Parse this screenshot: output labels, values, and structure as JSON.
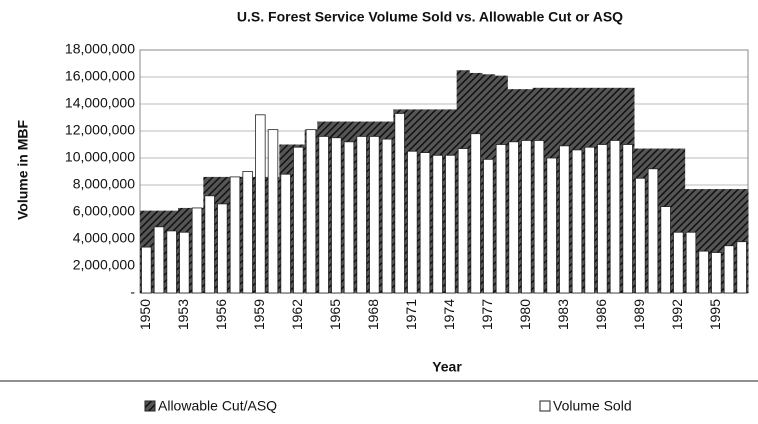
{
  "chart_data": {
    "type": "bar",
    "title": "U.S. Forest Service Volume Sold vs. Allowable Cut or ASQ",
    "x_label": "Year",
    "y_label": "Volume in MBF",
    "categories": [
      "1950",
      null,
      null,
      "1953",
      null,
      null,
      "1956",
      null,
      null,
      "1959",
      null,
      null,
      "1962",
      null,
      null,
      "1965",
      null,
      null,
      "1968",
      null,
      null,
      "1971",
      null,
      null,
      "1974",
      null,
      null,
      "1977",
      null,
      null,
      "1980",
      null,
      null,
      "1983",
      null,
      null,
      "1986",
      null,
      null,
      "1989",
      null,
      null,
      "1992",
      null,
      null,
      "1995",
      null,
      null
    ],
    "series": [
      {
        "name": "Allowable Cut/ASQ",
        "type": "area",
        "color": "#222222",
        "values": [
          6100000,
          6100000,
          6100000,
          6300000,
          6300000,
          8600000,
          8600000,
          8600000,
          8600000,
          8600000,
          8600000,
          11000000,
          11000000,
          12100000,
          12700000,
          12700000,
          12700000,
          12700000,
          12700000,
          12700000,
          13600000,
          13600000,
          13600000,
          13600000,
          13600000,
          16500000,
          16300000,
          16200000,
          16100000,
          15100000,
          15100000,
          15200000,
          15200000,
          15200000,
          15200000,
          15200000,
          15200000,
          15200000,
          15200000,
          10700000,
          10700000,
          10700000,
          10700000,
          7700000,
          7700000,
          7700000,
          7700000,
          7700000
        ]
      },
      {
        "name": "Volume Sold",
        "type": "bar",
        "color": "#ffffff",
        "values": [
          3400000,
          4900000,
          4600000,
          4500000,
          6300000,
          7200000,
          6600000,
          8600000,
          9000000,
          13200000,
          12100000,
          8800000,
          10800000,
          12100000,
          11600000,
          11500000,
          11200000,
          11600000,
          11600000,
          11400000,
          13300000,
          10500000,
          10400000,
          10200000,
          10200000,
          10700000,
          11800000,
          9900000,
          11000000,
          11200000,
          11300000,
          11300000,
          10000000,
          10900000,
          10600000,
          10800000,
          11000000,
          11300000,
          11000000,
          8500000,
          9200000,
          6400000,
          4500000,
          4500000,
          3100000,
          3000000,
          3500000,
          3800000
        ]
      }
    ],
    "ylim": [
      0,
      18000000
    ],
    "yticks": [
      {
        "value": 0,
        "label": "-"
      },
      {
        "value": 2000000,
        "label": "2,000,000"
      },
      {
        "value": 4000000,
        "label": "4,000,000"
      },
      {
        "value": 6000000,
        "label": "6,000,000"
      },
      {
        "value": 8000000,
        "label": "8,000,000"
      },
      {
        "value": 10000000,
        "label": "10,000,000"
      },
      {
        "value": 12000000,
        "label": "12,000,000"
      },
      {
        "value": 14000000,
        "label": "14,000,000"
      },
      {
        "value": 16000000,
        "label": "16,000,000"
      },
      {
        "value": 18000000,
        "label": "18,000,000"
      }
    ],
    "grid": true,
    "legend": "bottom"
  }
}
